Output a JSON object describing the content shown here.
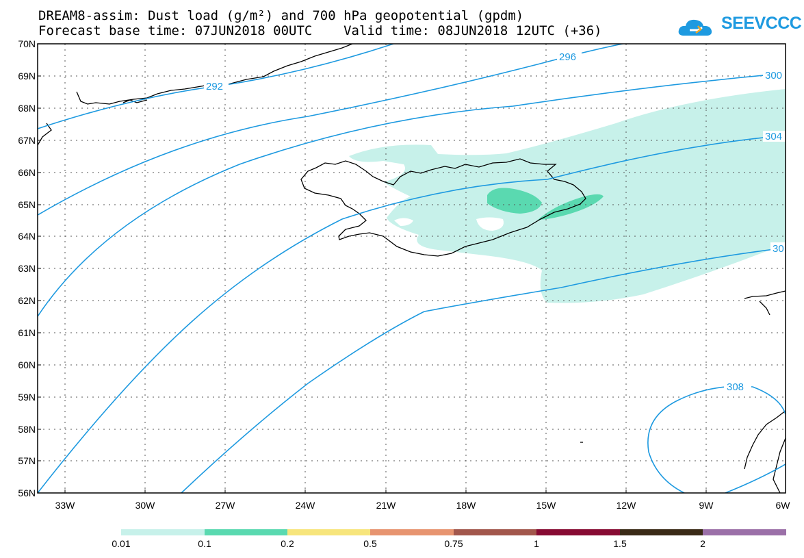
{
  "header": {
    "title_line1": "DREAM8-assim: Dust load (g/m²) and 700 hPa geopotential (gpdm)",
    "title_line2": "Forecast base time: 07JUN2018 00UTC    Valid time: 08JUN2018 12UTC (+36)",
    "logo_text": "SEEVCCC"
  },
  "map": {
    "lat_labels": [
      "70N",
      "69N",
      "68N",
      "67N",
      "66N",
      "65N",
      "64N",
      "63N",
      "62N",
      "61N",
      "60N",
      "59N",
      "58N",
      "57N",
      "56N"
    ],
    "lon_labels": [
      "33W",
      "30W",
      "27W",
      "24W",
      "21W",
      "18W",
      "15W",
      "12W",
      "9W",
      "6W"
    ],
    "contour_labels": [
      "292",
      "296",
      "300",
      "304",
      "30",
      "308"
    ],
    "contour_color": "#1e9ae0",
    "dust_light_color": "#c7f1ea",
    "dust_mid_color": "#5ad9b0"
  },
  "colorbar": {
    "labels": [
      "0.01",
      "0.1",
      "0.2",
      "0.5",
      "0.75",
      "1",
      "1.5",
      "2"
    ],
    "colors": [
      "#c7f1ea",
      "#5ad9b0",
      "#f7e57c",
      "#e79470",
      "#a2574c",
      "#870b33",
      "#3a2a16",
      "#9b70a8"
    ]
  }
}
